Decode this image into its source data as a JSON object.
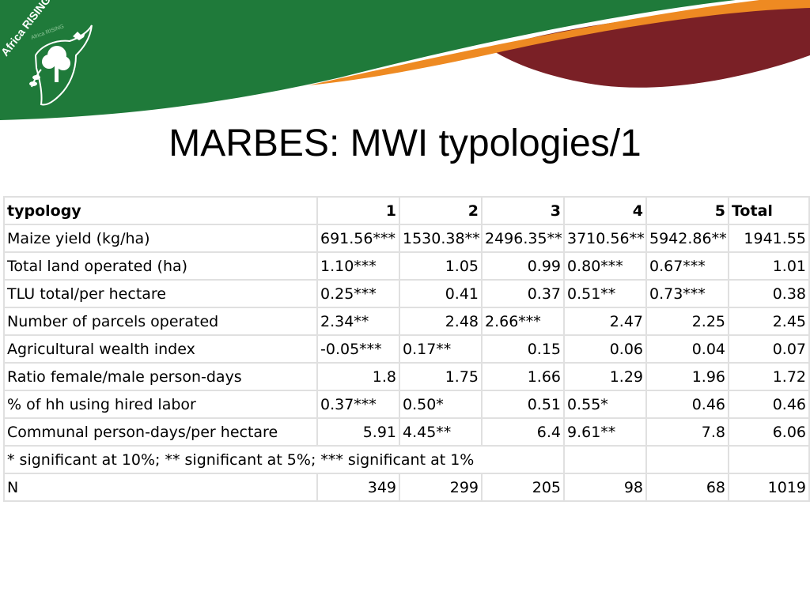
{
  "logo": {
    "text": "Africa RISING",
    "subtext": "Africa RISING"
  },
  "title": "MARBES: MWI typologies/1",
  "table": {
    "header": [
      "typology",
      "1",
      "2",
      "3",
      "4",
      "5",
      "Total"
    ],
    "rows": [
      [
        "Maize yield (kg/ha)",
        "691.56***",
        "1530.38**",
        "2496.35**",
        "3710.56**",
        "5942.86**",
        "1941.55"
      ],
      [
        "Total land operated (ha)",
        "1.10***",
        "1.05",
        "0.99",
        "0.80***",
        "0.67***",
        "1.01"
      ],
      [
        "TLU total/per hectare",
        "0.25***",
        "0.41",
        "0.37",
        "0.51**",
        "0.73***",
        "0.38"
      ],
      [
        "Number of parcels operated",
        "2.34**",
        "2.48",
        "2.66***",
        "2.47",
        "2.25",
        "2.45"
      ],
      [
        "Agricultural wealth index",
        "-0.05***",
        "0.17**",
        "0.15",
        "0.06",
        "0.04",
        "0.07"
      ],
      [
        "Ratio female/male person-days",
        "1.8",
        "1.75",
        "1.66",
        "1.29",
        "1.96",
        "1.72"
      ],
      [
        "% of hh using hired labor",
        "0.37***",
        "0.50*",
        "0.51",
        "0.55*",
        "0.46",
        "0.46"
      ],
      [
        "Communal person-days/per hectare",
        "5.91",
        "4.45**",
        "6.4",
        "9.61**",
        "7.8",
        "6.06"
      ]
    ],
    "note": "* significant at 10%; ** significant at 5%; *** significant at 1%",
    "n_row": [
      "N",
      "349",
      "299",
      "205",
      "98",
      "68",
      "1019"
    ]
  },
  "colors": {
    "green": "#1f7a3a",
    "orange": "#ee8a22",
    "maroon": "#7a2026"
  }
}
